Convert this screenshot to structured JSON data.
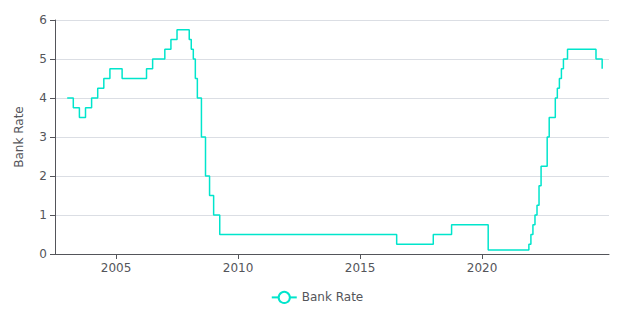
{
  "chart_data": {
    "type": "step",
    "ylabel": "Bank Rate",
    "series": [
      {
        "name": "Bank Rate",
        "color": "#00e5cc",
        "x": [
          2003.0,
          2003.25,
          2003.5,
          2003.75,
          2004.0,
          2004.25,
          2004.5,
          2004.75,
          2005.0,
          2005.25,
          2005.5,
          2005.75,
          2006.0,
          2006.25,
          2006.5,
          2006.75,
          2007.0,
          2007.25,
          2007.5,
          2007.75,
          2008.0,
          2008.083,
          2008.167,
          2008.25,
          2008.333,
          2008.5,
          2008.667,
          2008.833,
          2009.0,
          2009.25,
          2010.0,
          2011.0,
          2012.0,
          2013.0,
          2014.0,
          2015.0,
          2015.5,
          2016.0,
          2016.5,
          2017.0,
          2017.5,
          2018.0,
          2018.5,
          2018.75,
          2019.0,
          2019.5,
          2020.0,
          2020.25,
          2021.0,
          2021.75,
          2021.917,
          2022.0,
          2022.083,
          2022.167,
          2022.25,
          2022.333,
          2022.417,
          2022.5,
          2022.583,
          2022.667,
          2022.75,
          2022.833,
          2022.917,
          2023.0,
          2023.083,
          2023.167,
          2023.25,
          2023.333,
          2023.417,
          2023.5,
          2023.583,
          2023.75,
          2023.917,
          2024.0,
          2024.667,
          2024.92
        ],
        "values": [
          4.0,
          3.75,
          3.5,
          3.75,
          4.0,
          4.25,
          4.5,
          4.75,
          4.75,
          4.5,
          4.5,
          4.5,
          4.5,
          4.75,
          5.0,
          5.0,
          5.25,
          5.5,
          5.75,
          5.75,
          5.5,
          5.25,
          5.0,
          4.5,
          4.0,
          3.0,
          2.0,
          1.5,
          1.0,
          0.5,
          0.5,
          0.5,
          0.5,
          0.5,
          0.5,
          0.5,
          0.5,
          0.5,
          0.25,
          0.25,
          0.25,
          0.5,
          0.5,
          0.75,
          0.75,
          0.75,
          0.75,
          0.1,
          0.1,
          0.1,
          0.25,
          0.5,
          0.75,
          1.0,
          1.25,
          1.75,
          2.25,
          2.25,
          2.25,
          3.0,
          3.5,
          3.5,
          3.5,
          4.0,
          4.25,
          4.5,
          4.75,
          5.0,
          5.0,
          5.25,
          5.25,
          5.25,
          5.25,
          5.25,
          5.0,
          4.75
        ]
      }
    ],
    "xlim": [
      2002.5,
      2025.2
    ],
    "xticks": [
      2005,
      2010,
      2015,
      2020
    ],
    "ylim": [
      0,
      6
    ],
    "yticks": [
      0,
      1,
      2,
      3,
      4,
      5,
      6
    ],
    "grid": true,
    "legend": "bottom"
  }
}
